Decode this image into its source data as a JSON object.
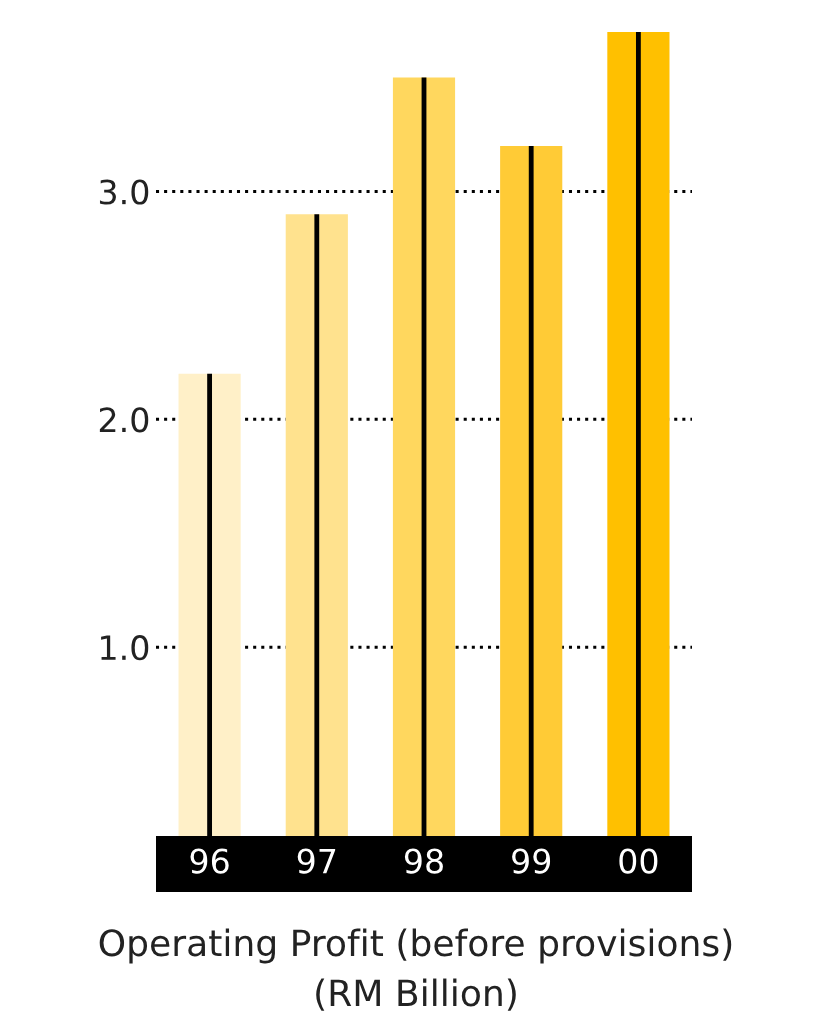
{
  "chart_data": {
    "type": "bar",
    "title": "Operating Profit (before provisions)",
    "subtitle": "(RM Billion)",
    "categories": [
      "96",
      "97",
      "98",
      "99",
      "00"
    ],
    "series": [
      {
        "colors": [
          "#fff0c8",
          "#ffe28e",
          "#ffd75e",
          "#ffcb36",
          "#ffc000"
        ],
        "values": [
          2.2,
          2.9,
          3.5,
          3.2,
          3.7
        ]
      },
      {
        "color": "#000000",
        "values": [
          2.2,
          2.9,
          3.5,
          3.2,
          3.7
        ]
      }
    ],
    "ylim": [
      0,
      3.7
    ],
    "yticks": [
      {
        "value": 1,
        "label": "1.0"
      },
      {
        "value": 2,
        "label": "2.0"
      },
      {
        "value": 3,
        "label": "3.0"
      }
    ],
    "grid": "y",
    "line_style": "dotted"
  }
}
